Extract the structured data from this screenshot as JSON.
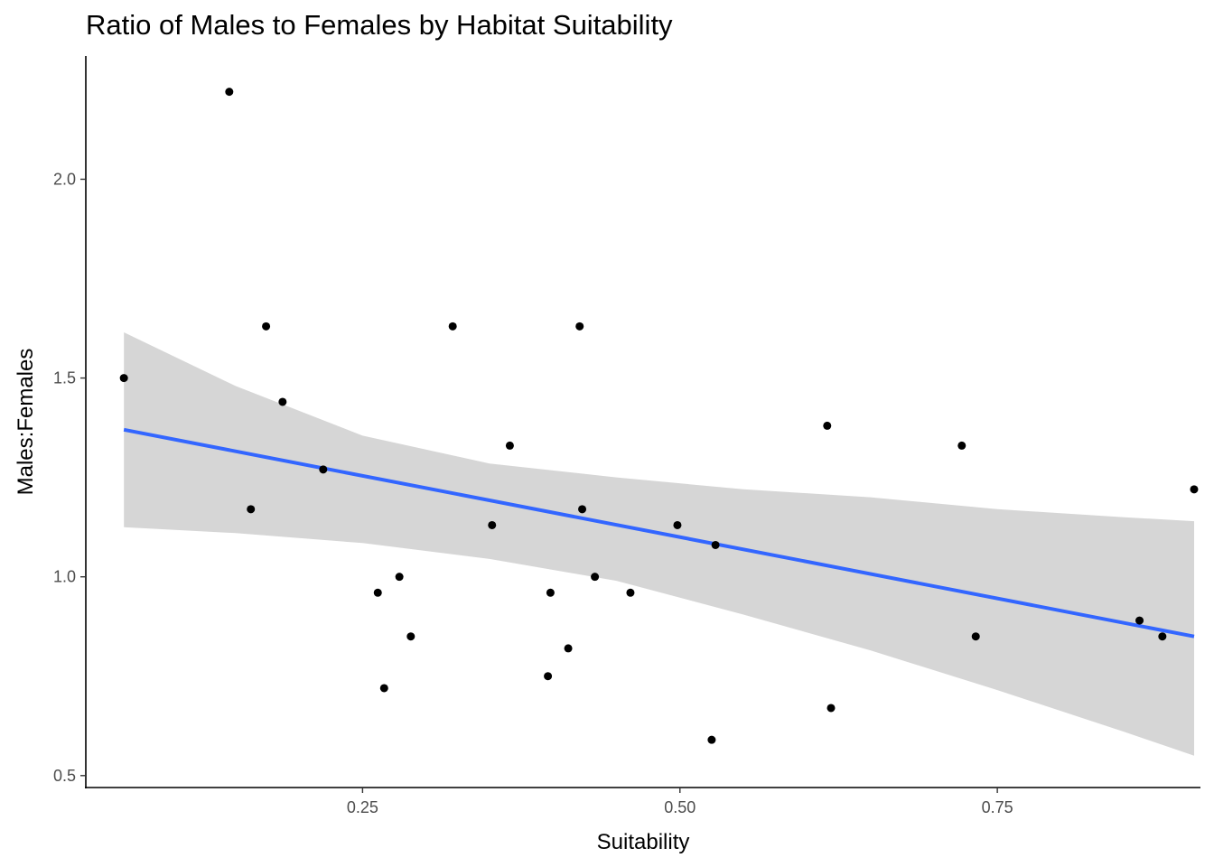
{
  "chart_data": {
    "type": "scatter",
    "title": "Ratio of Males to Females by Habitat Suitability",
    "xlabel": "Suitability",
    "ylabel": "Males:Females",
    "xlim": [
      0.032,
      0.91
    ],
    "ylim": [
      0.47,
      2.31
    ],
    "xticks": [
      0.25,
      0.5,
      0.75
    ],
    "xtick_labels": [
      "0.25",
      "0.50",
      "0.75"
    ],
    "yticks": [
      0.5,
      1.0,
      1.5,
      2.0
    ],
    "ytick_labels": [
      "0.5",
      "1.0",
      "1.5",
      "2.0"
    ],
    "grid": false,
    "points": [
      {
        "x": 0.062,
        "y": 1.5
      },
      {
        "x": 0.145,
        "y": 2.22
      },
      {
        "x": 0.162,
        "y": 1.17
      },
      {
        "x": 0.174,
        "y": 1.63
      },
      {
        "x": 0.187,
        "y": 1.44
      },
      {
        "x": 0.219,
        "y": 1.27
      },
      {
        "x": 0.262,
        "y": 0.96
      },
      {
        "x": 0.267,
        "y": 0.72
      },
      {
        "x": 0.279,
        "y": 1.0
      },
      {
        "x": 0.288,
        "y": 0.85
      },
      {
        "x": 0.321,
        "y": 1.63
      },
      {
        "x": 0.352,
        "y": 1.13
      },
      {
        "x": 0.366,
        "y": 1.33
      },
      {
        "x": 0.396,
        "y": 0.75
      },
      {
        "x": 0.398,
        "y": 0.96
      },
      {
        "x": 0.412,
        "y": 0.82
      },
      {
        "x": 0.421,
        "y": 1.63
      },
      {
        "x": 0.423,
        "y": 1.17
      },
      {
        "x": 0.433,
        "y": 1.0
      },
      {
        "x": 0.461,
        "y": 0.96
      },
      {
        "x": 0.498,
        "y": 1.13
      },
      {
        "x": 0.525,
        "y": 0.59
      },
      {
        "x": 0.528,
        "y": 1.08
      },
      {
        "x": 0.616,
        "y": 1.38
      },
      {
        "x": 0.619,
        "y": 0.67
      },
      {
        "x": 0.722,
        "y": 1.33
      },
      {
        "x": 0.733,
        "y": 0.85
      },
      {
        "x": 0.862,
        "y": 0.89
      },
      {
        "x": 0.88,
        "y": 0.85
      },
      {
        "x": 0.905,
        "y": 1.22
      }
    ],
    "trend_line": {
      "x": [
        0.062,
        0.905
      ],
      "y": [
        1.37,
        0.85
      ]
    },
    "confidence_band": {
      "x": [
        0.062,
        0.15,
        0.25,
        0.35,
        0.45,
        0.55,
        0.65,
        0.75,
        0.85,
        0.905
      ],
      "lower": [
        1.125,
        1.11,
        1.085,
        1.045,
        0.99,
        0.905,
        0.815,
        0.715,
        0.61,
        0.55
      ],
      "upper": [
        1.615,
        1.48,
        1.355,
        1.285,
        1.25,
        1.22,
        1.2,
        1.17,
        1.15,
        1.14
      ]
    },
    "colors": {
      "points": "#000000",
      "trend": "#3366ff",
      "band": "#d6d6d6",
      "axis": "#000000",
      "tick_text": "#4d4d4d"
    }
  }
}
